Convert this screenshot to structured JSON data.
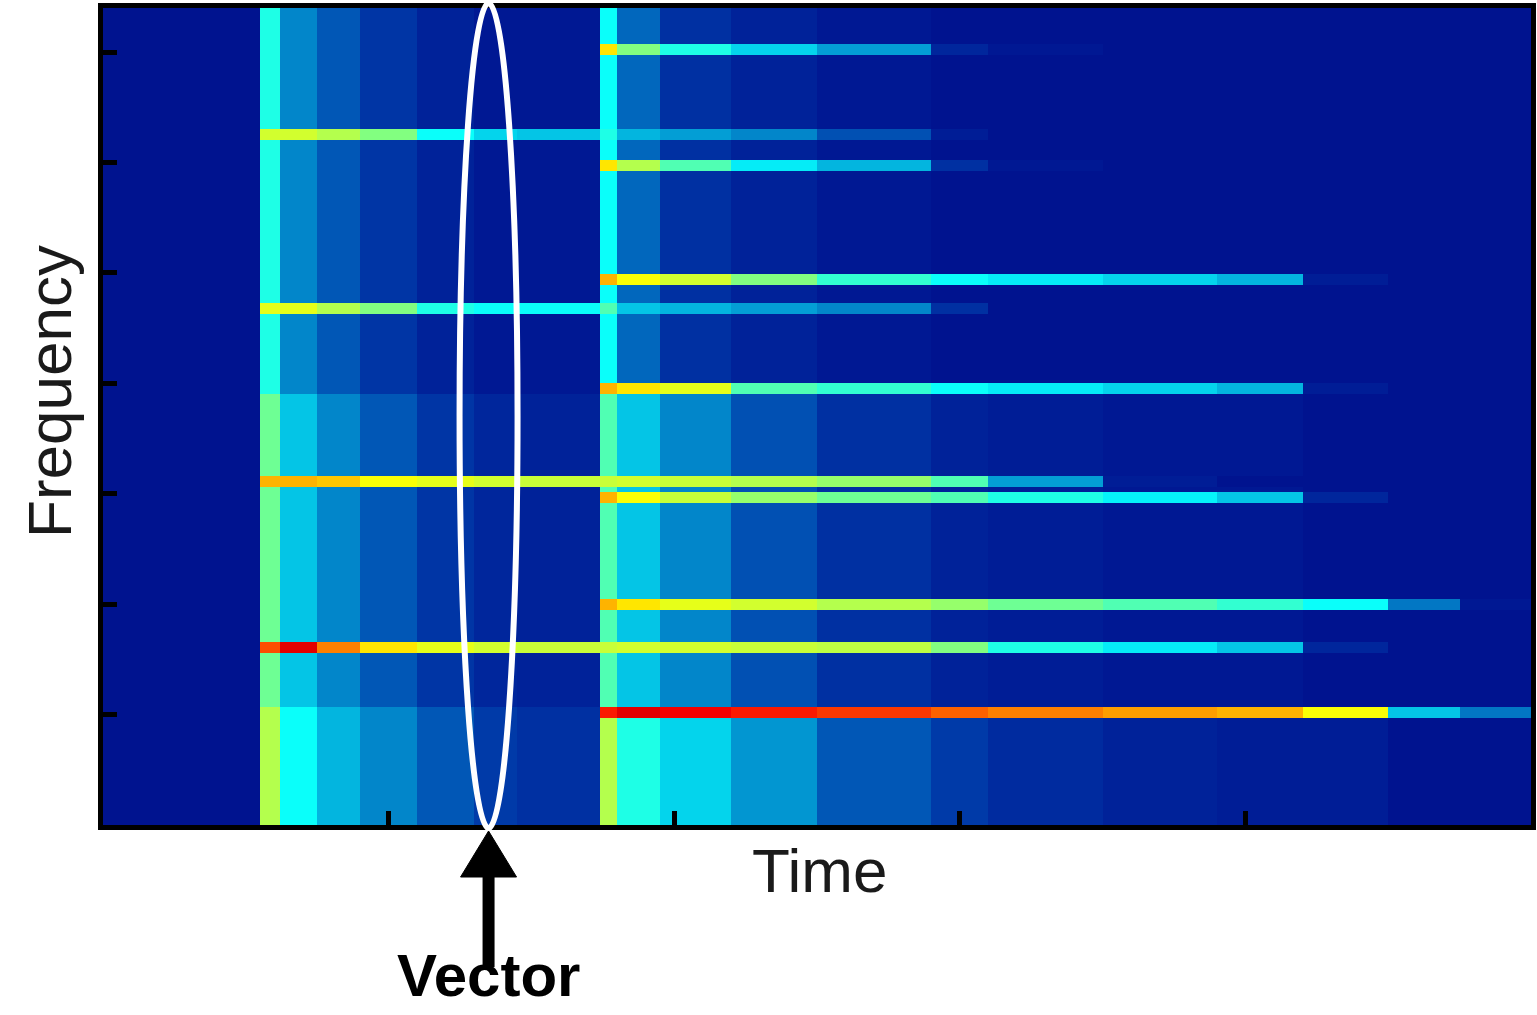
{
  "chart_data": {
    "type": "heatmap",
    "x_label": "Time",
    "y_label": "Frequency",
    "x": [
      0,
      0.55,
      0.62,
      0.75,
      0.9,
      1.1,
      1.3,
      1.45,
      1.74,
      1.8,
      1.95,
      2.2,
      2.5,
      2.9,
      3.1,
      3.5,
      3.9,
      4.2,
      4.5,
      4.75,
      5.0
    ],
    "y": [
      0,
      0.15,
      0.5,
      0.97,
      1.07,
      1.3,
      1.56,
      1.66,
      1.95,
      2.05,
      2.5,
      2.92,
      3.02,
      3.06,
      3.16,
      3.5,
      3.9,
      4.0,
      4.3,
      4.63,
      4.73,
      4.89,
      4.99,
      5.5,
      5.92,
      6.02,
      6.2,
      6.3,
      6.6,
      6.97,
      7.07,
      7.4
    ],
    "z": [
      [
        4,
        55,
        38,
        28,
        22,
        16,
        12,
        10,
        55,
        40,
        32,
        24,
        16,
        12,
        9,
        7,
        6,
        6,
        4,
        4
      ],
      [
        4,
        55,
        38,
        28,
        22,
        16,
        12,
        10,
        55,
        40,
        32,
        24,
        16,
        12,
        9,
        7,
        6,
        6,
        4,
        4
      ],
      [
        4,
        55,
        38,
        28,
        22,
        16,
        12,
        10,
        55,
        40,
        32,
        24,
        16,
        12,
        9,
        7,
        6,
        6,
        4,
        4
      ],
      [
        4,
        55,
        38,
        28,
        22,
        16,
        12,
        10,
        85,
        90,
        88,
        85,
        82,
        78,
        75,
        72,
        70,
        62,
        30,
        20
      ],
      [
        4,
        48,
        30,
        22,
        16,
        11,
        8,
        7,
        45,
        30,
        22,
        15,
        10,
        7,
        6,
        5,
        5,
        4,
        4,
        4
      ],
      [
        4,
        48,
        30,
        22,
        16,
        11,
        8,
        7,
        45,
        30,
        22,
        15,
        10,
        7,
        6,
        5,
        5,
        4,
        4,
        4
      ],
      [
        4,
        80,
        90,
        75,
        65,
        60,
        58,
        57,
        57,
        58,
        58,
        57,
        56,
        50,
        40,
        35,
        30,
        8,
        4,
        4
      ],
      [
        4,
        48,
        30,
        22,
        16,
        11,
        8,
        7,
        45,
        30,
        22,
        15,
        10,
        7,
        6,
        5,
        5,
        4,
        4,
        4
      ],
      [
        4,
        48,
        30,
        22,
        16,
        11,
        8,
        7,
        70,
        65,
        60,
        58,
        55,
        52,
        48,
        45,
        42,
        38,
        20,
        5
      ],
      [
        4,
        48,
        30,
        22,
        16,
        11,
        8,
        7,
        45,
        30,
        22,
        15,
        10,
        7,
        6,
        5,
        5,
        4,
        4,
        4
      ],
      [
        4,
        48,
        30,
        22,
        16,
        11,
        8,
        7,
        45,
        30,
        22,
        15,
        10,
        7,
        6,
        5,
        5,
        4,
        4,
        4
      ],
      [
        4,
        48,
        30,
        22,
        16,
        11,
        8,
        7,
        70,
        62,
        57,
        52,
        48,
        45,
        40,
        36,
        30,
        8,
        4,
        4
      ],
      [
        4,
        48,
        30,
        22,
        16,
        11,
        8,
        7,
        45,
        30,
        22,
        15,
        10,
        7,
        6,
        5,
        5,
        4,
        4,
        4
      ],
      [
        4,
        70,
        70,
        68,
        62,
        60,
        58,
        57,
        57,
        58,
        57,
        55,
        52,
        45,
        25,
        6,
        4,
        4,
        4,
        4
      ],
      [
        4,
        48,
        30,
        22,
        16,
        11,
        8,
        7,
        45,
        30,
        22,
        15,
        10,
        7,
        6,
        5,
        5,
        4,
        4,
        4
      ],
      [
        4,
        48,
        30,
        22,
        16,
        11,
        8,
        7,
        45,
        30,
        22,
        15,
        10,
        7,
        6,
        5,
        5,
        4,
        4,
        4
      ],
      [
        4,
        40,
        22,
        16,
        11,
        7,
        5,
        5,
        70,
        65,
        60,
        45,
        42,
        38,
        35,
        32,
        28,
        6,
        4,
        4
      ],
      [
        4,
        40,
        22,
        16,
        11,
        7,
        5,
        5,
        38,
        18,
        10,
        7,
        5,
        4,
        4,
        4,
        4,
        4,
        4,
        4
      ],
      [
        4,
        40,
        22,
        16,
        11,
        7,
        5,
        5,
        38,
        18,
        10,
        7,
        5,
        4,
        4,
        4,
        4,
        4,
        4,
        4
      ],
      [
        4,
        60,
        60,
        55,
        50,
        40,
        38,
        38,
        45,
        30,
        28,
        25,
        22,
        10,
        4,
        4,
        4,
        4,
        4,
        4
      ],
      [
        4,
        40,
        22,
        16,
        11,
        7,
        5,
        5,
        38,
        18,
        10,
        7,
        5,
        4,
        4,
        4,
        4,
        4,
        4,
        4
      ],
      [
        4,
        40,
        22,
        16,
        11,
        7,
        5,
        5,
        70,
        62,
        58,
        50,
        42,
        38,
        35,
        32,
        28,
        6,
        4,
        4
      ],
      [
        4,
        40,
        22,
        16,
        11,
        7,
        5,
        5,
        38,
        18,
        10,
        7,
        5,
        4,
        4,
        4,
        4,
        4,
        4,
        4
      ],
      [
        4,
        40,
        22,
        16,
        11,
        7,
        5,
        5,
        38,
        18,
        10,
        7,
        5,
        4,
        4,
        4,
        4,
        4,
        4,
        4
      ],
      [
        4,
        40,
        22,
        16,
        11,
        7,
        5,
        5,
        65,
        55,
        45,
        35,
        28,
        10,
        5,
        4,
        4,
        4,
        4,
        4
      ],
      [
        4,
        40,
        22,
        16,
        11,
        7,
        5,
        5,
        38,
        18,
        10,
        7,
        5,
        4,
        4,
        4,
        4,
        4,
        4,
        4
      ],
      [
        4,
        58,
        58,
        55,
        50,
        38,
        32,
        30,
        40,
        28,
        25,
        22,
        15,
        6,
        4,
        4,
        4,
        4,
        4,
        4
      ],
      [
        4,
        40,
        22,
        16,
        11,
        7,
        5,
        5,
        38,
        18,
        10,
        7,
        5,
        4,
        4,
        4,
        4,
        4,
        4,
        4
      ],
      [
        4,
        40,
        22,
        16,
        11,
        7,
        5,
        5,
        38,
        18,
        10,
        7,
        5,
        4,
        4,
        4,
        4,
        4,
        4,
        4
      ],
      [
        4,
        40,
        22,
        16,
        11,
        7,
        5,
        5,
        65,
        50,
        40,
        32,
        25,
        8,
        5,
        4,
        4,
        4,
        4,
        4
      ],
      [
        4,
        40,
        22,
        16,
        11,
        7,
        5,
        5,
        38,
        18,
        10,
        7,
        5,
        4,
        4,
        4,
        4,
        4,
        4,
        4
      ]
    ],
    "zlim": [
      0,
      100
    ],
    "color": "jet",
    "xlim": [
      0,
      5
    ],
    "ylim": [
      0,
      7.4
    ],
    "xticks": [
      1,
      2,
      3,
      4
    ],
    "yticks": [
      1,
      2,
      3,
      4,
      5,
      6,
      7
    ],
    "tick_labels": false,
    "annotations": [
      {
        "text": "Vector",
        "x": 1.35
      }
    ]
  }
}
